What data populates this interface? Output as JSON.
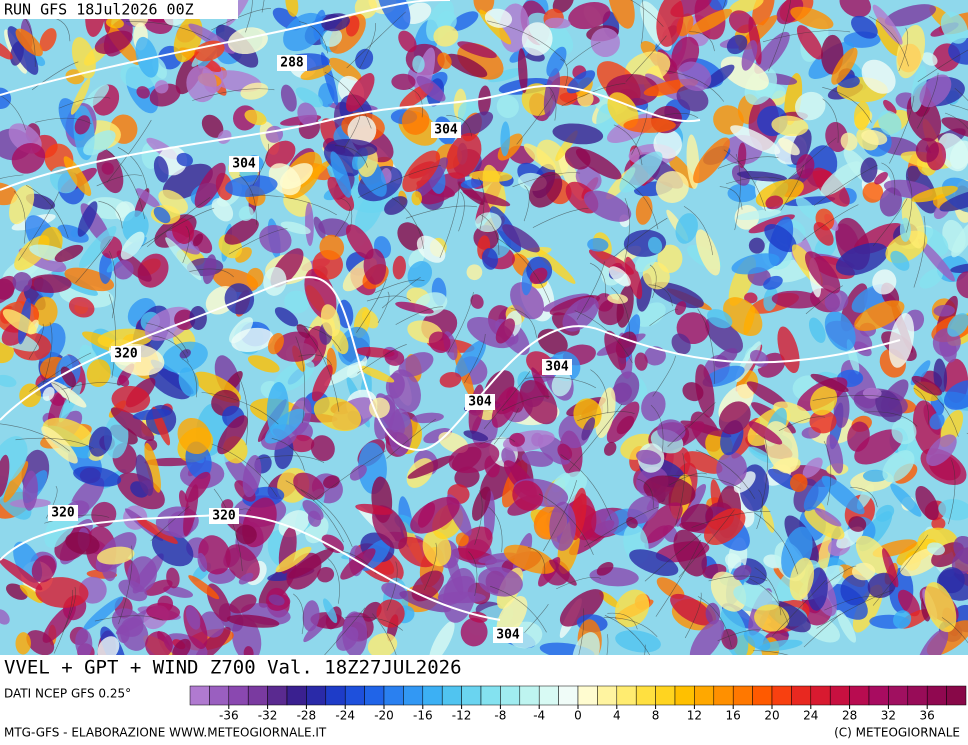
{
  "header": {
    "run": "RUN GFS 18Jul2026 00Z"
  },
  "caption": "VVEL + GPT + WIND Z700 Val. 18Z27JUL2026",
  "source": "DATI NCEP GFS 0.25°",
  "footer_left": "MTG-GFS - ELABORAZIONE WWW.METEOGIORNALE.IT",
  "footer_right": "(C) METEOGIORNALE",
  "contour_labels": [
    "288",
    "304",
    "304",
    "320",
    "304",
    "304",
    "320",
    "320",
    "304"
  ],
  "colorbar": {
    "colors": [
      "#b07ad0",
      "#9a5fc0",
      "#8a48b0",
      "#7a3aa0",
      "#5a2a90",
      "#3a2090",
      "#2a2aa8",
      "#1e3cc8",
      "#1e50dc",
      "#2064e8",
      "#2a80f0",
      "#3298f4",
      "#3cb0f4",
      "#50c4f0",
      "#6ad4f0",
      "#84e2f0",
      "#a0ecf0",
      "#bef4f0",
      "#d8faf4",
      "#f0fcf8",
      "#fffcd0",
      "#fff4a0",
      "#ffec70",
      "#ffe040",
      "#ffd420",
      "#ffc000",
      "#ffa800",
      "#ff9000",
      "#ff7800",
      "#ff5a00",
      "#f84010",
      "#e82820",
      "#d81a30",
      "#c81040",
      "#b80c50",
      "#a80c60",
      "#a01060",
      "#980c58",
      "#900850",
      "#880848"
    ],
    "ticks": [
      -36,
      -32,
      -28,
      -24,
      -20,
      -16,
      -12,
      -8,
      -4,
      0,
      4,
      8,
      12,
      16,
      20,
      24,
      28,
      32,
      36
    ]
  }
}
